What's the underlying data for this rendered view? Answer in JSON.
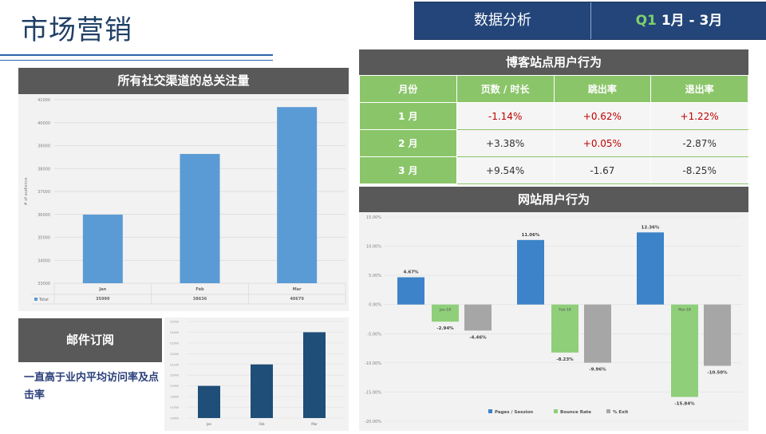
{
  "page": {
    "title": "市场营销"
  },
  "header": {
    "section": "数据分析",
    "quarter": "Q1",
    "months": "1月 - 3月"
  },
  "social": {
    "title": "所有社交渠道的总关注量",
    "chart_data": {
      "type": "bar",
      "ylabel": "# of audience",
      "ylim": [
        33000,
        41000
      ],
      "yticks": [
        33000,
        34000,
        35000,
        36000,
        37000,
        38000,
        39000,
        40000,
        41000
      ],
      "categories": [
        "Jan",
        "Feb",
        "Mar"
      ],
      "series": [
        {
          "name": "Total",
          "values": [
            35990,
            38636,
            40679
          ]
        }
      ],
      "table_row": {
        "label": "Total",
        "values": [
          "35990",
          "38636",
          "40679"
        ]
      },
      "colors": {
        "bar": "#5b9bd5"
      }
    }
  },
  "email": {
    "title": "邮件订阅",
    "note": "一直高于业内平均访问率及点击率",
    "chart_data": {
      "type": "bar",
      "ylim": [
        11600,
        12500
      ],
      "yticks": [
        11600,
        11700,
        11800,
        11900,
        12000,
        12100,
        12200,
        12300,
        12400,
        12500
      ],
      "categories": [
        "Jan",
        "Feb",
        "Mar"
      ],
      "series": [
        {
          "values": [
            11900,
            12100,
            12400
          ]
        }
      ],
      "colors": {
        "bar": "#1f4e79"
      }
    }
  },
  "blog": {
    "title": "博客站点用户行为",
    "columns": [
      "月份",
      "页数 / 时长",
      "跳出率",
      "退出率"
    ],
    "rows": [
      {
        "month": "1 月",
        "cells": [
          {
            "v": "-1.14%",
            "c": "red"
          },
          {
            "v": "+0.62%",
            "c": "red"
          },
          {
            "v": "+1.22%",
            "c": "red"
          }
        ]
      },
      {
        "month": "2 月",
        "cells": [
          {
            "v": "+3.38%",
            "c": "dark"
          },
          {
            "v": "+0.05%",
            "c": "red"
          },
          {
            "v": "-2.87%",
            "c": "dark"
          }
        ]
      },
      {
        "month": "3 月",
        "cells": [
          {
            "v": "+9.54%",
            "c": "dark"
          },
          {
            "v": "-1.67",
            "c": "dark"
          },
          {
            "v": "-8.25%",
            "c": "dark"
          }
        ]
      }
    ]
  },
  "site": {
    "title": "网站用户行为",
    "chart_data": {
      "type": "bar",
      "ylim": [
        -20,
        15
      ],
      "yticks": [
        15,
        10,
        5,
        0,
        -5,
        -10,
        -15,
        -20
      ],
      "ytick_labels": [
        "15.00%",
        "10.00%",
        "5.00%",
        "0.00%",
        "-5.00%",
        "-10.00%",
        "-15.00%",
        "-20.00%"
      ],
      "categories": [
        "Jan-18",
        "Feb-18",
        "Mar-18"
      ],
      "series": [
        {
          "name": "Pages / Session",
          "values": [
            4.67,
            11.06,
            12.36
          ],
          "labels": [
            "4.67%",
            "11.06%",
            "12.36%"
          ],
          "color": "#3c83c9"
        },
        {
          "name": "Bounce Rate",
          "values": [
            -2.94,
            -8.23,
            -15.84
          ],
          "labels": [
            "-2.94%",
            "-8.23%",
            "-15.84%"
          ],
          "color": "#8fcf7a"
        },
        {
          "name": "% Exit",
          "values": [
            -4.46,
            -9.96,
            -10.5
          ],
          "labels": [
            "-4.46%",
            "-9.96%",
            "-10.50%"
          ],
          "color": "#a6a6a6"
        }
      ],
      "legend": "bottom"
    }
  }
}
